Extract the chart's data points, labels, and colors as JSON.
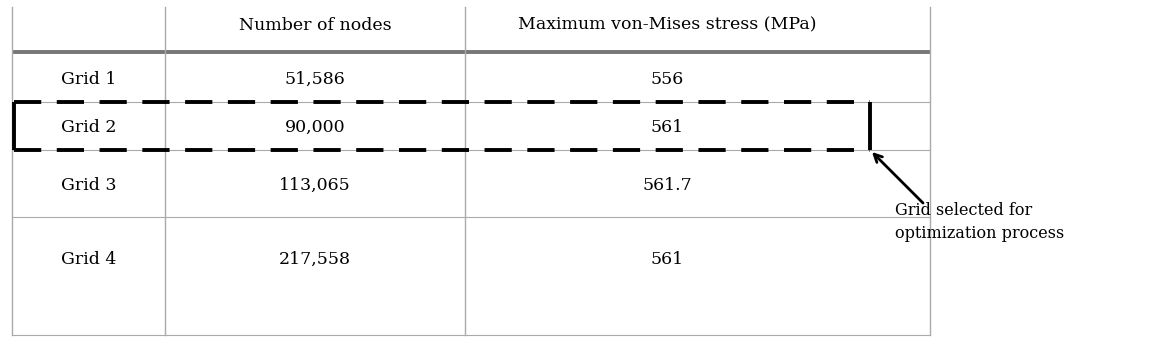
{
  "col_headers": [
    "",
    "Number of nodes",
    "Maximum von-Mises stress (MPa)"
  ],
  "rows": [
    [
      "Grid 1",
      "51,586",
      "556"
    ],
    [
      "Grid 2",
      "90,000",
      "561"
    ],
    [
      "Grid 3",
      "113,065",
      "561.7"
    ],
    [
      "Grid 4",
      "217,558",
      "561"
    ]
  ],
  "annotation_text": "Grid selected for\noptimization process",
  "background_color": "#ffffff",
  "text_color": "#000000",
  "header_color": "#666666",
  "dash_color": "#000000",
  "fontsize_header": 12.5,
  "fontsize_data": 12.5,
  "fontsize_annotation": 11.5
}
